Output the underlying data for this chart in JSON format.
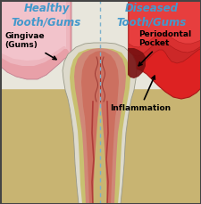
{
  "bg_color": "#c8b472",
  "white_top_color": "#e8e6dc",
  "left_label": "Healthy\nTooth/Gums",
  "right_label": "Diseased\nTooth/Gums",
  "label_color": "#4499cc",
  "divider_color": "#7ab0cc",
  "annotation_gingivae": "Gingivae\n(Gums)",
  "annotation_pocket": "Periodontal\nPocket",
  "annotation_inflammation": "Inflammation",
  "tooth_enamel": "#dddacc",
  "tooth_dentin": "#c8c070",
  "tooth_cementum": "#b8a060",
  "tooth_pulp_outer": "#cc7060",
  "tooth_pulp_inner": "#aa3030",
  "tooth_edge": "#aaaaaa",
  "gum_healthy_outer": "#e8a0a8",
  "gum_healthy_inner": "#f0c0c8",
  "gum_diseased_bright": "#dd2222",
  "gum_diseased_dark": "#aa1818",
  "gum_diseased_mid": "#cc2828",
  "border_color": "#444444",
  "figsize": [
    2.25,
    2.29
  ],
  "dpi": 100
}
